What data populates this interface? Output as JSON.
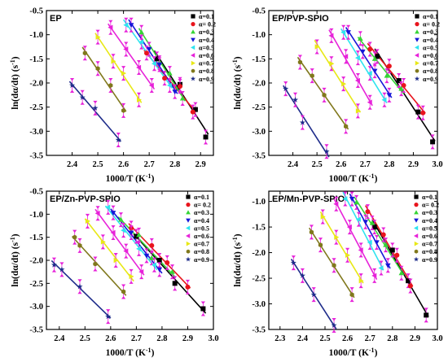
{
  "chart_data": [
    {
      "type": "scatter",
      "title": "EP",
      "xlabel": "1000/T (K⁻¹)",
      "ylabel": "ln(dα/dt) (s⁻¹)",
      "xlim": [
        2.3,
        2.95
      ],
      "ylim": [
        -3.5,
        -0.5
      ],
      "xticks": [
        "2.4",
        "2.5",
        "2.6",
        "2.7",
        "2.8",
        "2.9"
      ],
      "yticks": [
        "-0.5",
        "-1.0",
        "-1.5",
        "-2.0",
        "-2.5",
        "-3.0",
        "-3.5"
      ],
      "series": [
        {
          "name": "α=0.1",
          "x": [
            2.73,
            2.82,
            2.88,
            2.92
          ],
          "y": [
            -1.5,
            -2.03,
            -2.55,
            -3.12
          ]
        },
        {
          "name": "α= 0.2",
          "x": [
            2.69,
            2.76,
            2.82,
            2.87
          ],
          "y": [
            -1.38,
            -1.9,
            -2.07,
            -2.6
          ]
        },
        {
          "name": "α=0.3",
          "x": [
            2.67,
            2.74,
            2.78,
            2.83
          ],
          "y": [
            -0.95,
            -1.58,
            -1.8,
            -2.32
          ]
        },
        {
          "name": "α=0.4",
          "x": [
            2.63,
            2.7,
            2.74,
            2.8
          ],
          "y": [
            -0.8,
            -1.3,
            -1.62,
            -2.18
          ]
        },
        {
          "name": "α=0.5",
          "x": [
            2.61,
            2.67,
            2.72,
            2.78
          ],
          "y": [
            -0.8,
            -1.15,
            -1.6,
            -2.05
          ]
        },
        {
          "name": "α=0.6",
          "x": [
            2.55,
            2.61,
            2.66,
            2.71
          ],
          "y": [
            -0.85,
            -1.3,
            -1.68,
            -2.05
          ]
        },
        {
          "name": "α=0.7",
          "x": [
            2.5,
            2.56,
            2.6,
            2.66
          ],
          "y": [
            -1.05,
            -1.55,
            -1.8,
            -2.35
          ]
        },
        {
          "name": "α=0.8",
          "x": [
            2.45,
            2.5,
            2.55,
            2.6
          ],
          "y": [
            -1.38,
            -1.7,
            -2.05,
            -2.57
          ]
        },
        {
          "name": "α=0.9",
          "x": [
            2.4,
            2.44,
            2.49,
            2.58
          ],
          "y": [
            -2.05,
            -2.3,
            -2.52,
            -3.18
          ]
        }
      ]
    },
    {
      "type": "scatter",
      "title": "EP/PVP-SPIO",
      "xlabel": "1000/T (K⁻¹)",
      "ylabel": "ln(dα/dt) (s⁻¹)",
      "xlim": [
        2.3,
        3.0
      ],
      "ylim": [
        -3.5,
        -0.5
      ],
      "xticks": [
        "2.4",
        "2.5",
        "2.6",
        "2.7",
        "2.8",
        "2.9",
        "3.0"
      ],
      "yticks": [
        "-0.5",
        "-1.0",
        "-1.5",
        "-2.0",
        "-2.5",
        "-3.0",
        "-3.5"
      ],
      "series": [
        {
          "name": "α=0.1",
          "x": [
            2.75,
            2.84,
            2.92,
            2.98
          ],
          "y": [
            -1.45,
            -1.95,
            -2.6,
            -3.22
          ]
        },
        {
          "name": "α= 0.2",
          "x": [
            2.72,
            2.8,
            2.86,
            2.94
          ],
          "y": [
            -1.3,
            -1.65,
            -2.05,
            -2.62
          ]
        },
        {
          "name": "α=0.3",
          "x": [
            2.68,
            2.74,
            2.79,
            2.85
          ],
          "y": [
            -1.08,
            -1.5,
            -1.85,
            -2.12
          ]
        },
        {
          "name": "α=0.4",
          "x": [
            2.63,
            2.69,
            2.74,
            2.8
          ],
          "y": [
            -0.95,
            -1.35,
            -1.75,
            -2.25
          ]
        },
        {
          "name": "α=0.5",
          "x": [
            2.61,
            2.67,
            2.72,
            2.78
          ],
          "y": [
            -0.95,
            -1.48,
            -1.8,
            -2.35
          ]
        },
        {
          "name": "α=0.6",
          "x": [
            2.56,
            2.62,
            2.67,
            2.72
          ],
          "y": [
            -1.02,
            -1.45,
            -1.95,
            -2.4
          ]
        },
        {
          "name": "α=0.7",
          "x": [
            2.5,
            2.56,
            2.61,
            2.67
          ],
          "y": [
            -1.25,
            -1.6,
            -2.02,
            -2.58
          ]
        },
        {
          "name": "α=0.8",
          "x": [
            2.43,
            2.48,
            2.53,
            2.62
          ],
          "y": [
            -1.57,
            -1.85,
            -2.25,
            -2.9
          ]
        },
        {
          "name": "α=0.9",
          "x": [
            2.37,
            2.41,
            2.44,
            2.54
          ],
          "y": [
            -2.12,
            -2.35,
            -2.82,
            -3.42
          ]
        }
      ]
    },
    {
      "type": "scatter",
      "title": "EP/Zn-PVP-SPIO",
      "xlabel": "1000/T (K⁻¹)",
      "ylabel": "ln(dα/dt) (s⁻¹)",
      "xlim": [
        2.35,
        3.0
      ],
      "ylim": [
        -3.5,
        -0.5
      ],
      "xticks": [
        "2.4",
        "2.5",
        "2.6",
        "2.7",
        "2.8",
        "2.9",
        "3.0"
      ],
      "yticks": [
        "-0.5",
        "-1.0",
        "-1.5",
        "-2.0",
        "-2.5",
        "-3.0",
        "-3.5"
      ],
      "series": [
        {
          "name": "α=0.1",
          "x": [
            2.7,
            2.79,
            2.85,
            2.96
          ],
          "y": [
            -1.48,
            -2.0,
            -2.5,
            -3.05
          ]
        },
        {
          "name": "α= 0.2",
          "x": [
            2.68,
            2.76,
            2.82,
            2.9
          ],
          "y": [
            -1.3,
            -1.68,
            -2.05,
            -2.58
          ]
        },
        {
          "name": "α=0.3",
          "x": [
            2.64,
            2.71,
            2.76,
            2.84
          ],
          "y": [
            -1.12,
            -1.45,
            -1.95,
            -2.25
          ]
        },
        {
          "name": "α=0.4",
          "x": [
            2.61,
            2.68,
            2.74,
            2.79
          ],
          "y": [
            -0.97,
            -1.4,
            -1.9,
            -2.2
          ]
        },
        {
          "name": "α=0.5",
          "x": [
            2.59,
            2.65,
            2.71,
            2.77
          ],
          "y": [
            -0.85,
            -1.35,
            -1.75,
            -2.1
          ]
        },
        {
          "name": "α=0.6",
          "x": [
            2.55,
            2.61,
            2.66,
            2.72
          ],
          "y": [
            -0.98,
            -1.4,
            -1.8,
            -2.25
          ]
        },
        {
          "name": "α=0.7",
          "x": [
            2.51,
            2.57,
            2.62,
            2.68
          ],
          "y": [
            -1.15,
            -1.6,
            -2.0,
            -2.35
          ]
        },
        {
          "name": "α=0.8",
          "x": [
            2.46,
            2.48,
            2.54,
            2.65
          ],
          "y": [
            -1.5,
            -1.68,
            -2.08,
            -2.68
          ]
        },
        {
          "name": "α=0.9",
          "x": [
            2.38,
            2.41,
            2.48,
            2.59
          ],
          "y": [
            -2.1,
            -2.2,
            -2.57,
            -3.22
          ]
        }
      ]
    },
    {
      "type": "scatter",
      "title": "EP/Mn-PVP-SPIO",
      "xlabel": "1000/T (K⁻¹)",
      "ylabel": "ln(dα/dt) (s⁻¹)",
      "xlim": [
        2.25,
        3.0
      ],
      "ylim": [
        -3.5,
        -0.8
      ],
      "xticks": [
        "2.3",
        "2.4",
        "2.5",
        "2.6",
        "2.7",
        "2.8",
        "2.9",
        "3.0"
      ],
      "yticks": [
        "-1.0",
        "-1.5",
        "-2.0",
        "-2.5",
        "-3.0",
        "-3.5"
      ],
      "series": [
        {
          "name": "α=0.1",
          "x": [
            2.72,
            2.8,
            2.87,
            2.95
          ],
          "y": [
            -1.5,
            -1.95,
            -2.55,
            -3.22
          ]
        },
        {
          "name": "α= 0.2",
          "x": [
            2.69,
            2.76,
            2.82,
            2.88
          ],
          "y": [
            -1.2,
            -1.65,
            -2.05,
            -2.65
          ]
        },
        {
          "name": "α=0.3",
          "x": [
            2.64,
            2.71,
            2.77,
            2.84
          ],
          "y": [
            -1.02,
            -1.42,
            -1.85,
            -2.4
          ]
        },
        {
          "name": "α=0.4",
          "x": [
            2.62,
            2.68,
            2.73,
            2.78
          ],
          "y": [
            -0.95,
            -1.4,
            -1.8,
            -2.25
          ]
        },
        {
          "name": "α=0.5",
          "x": [
            2.59,
            2.65,
            2.7,
            2.75
          ],
          "y": [
            -0.95,
            -1.35,
            -1.8,
            -2.3
          ]
        },
        {
          "name": "α=0.6",
          "x": [
            2.55,
            2.61,
            2.66,
            2.72
          ],
          "y": [
            -1.05,
            -1.5,
            -1.95,
            -2.45
          ]
        },
        {
          "name": "α=0.7",
          "x": [
            2.49,
            2.55,
            2.6,
            2.66
          ],
          "y": [
            -1.3,
            -1.7,
            -2.05,
            -2.55
          ]
        },
        {
          "name": "α=0.8",
          "x": [
            2.44,
            2.48,
            2.54,
            2.62
          ],
          "y": [
            -1.6,
            -1.85,
            -2.25,
            -2.82
          ]
        },
        {
          "name": "α=0.9",
          "x": [
            2.36,
            2.4,
            2.45,
            2.54
          ],
          "y": [
            -2.2,
            -2.45,
            -2.82,
            -3.42
          ]
        }
      ]
    }
  ],
  "panels": [
    {
      "title": "EP",
      "xlabel": "1000/T (K",
      "xlabel_sup": "-1",
      "ylabel": "ln(dα/dt) (s",
      "ylabel_sup": "-1"
    },
    {
      "title": "EP/PVP-SPIO",
      "xlabel": "1000/T (K",
      "xlabel_sup": "-1",
      "ylabel": "ln(dα/dt) (s",
      "ylabel_sup": "-1"
    },
    {
      "title": "EP/Zn-PVP-SPIO",
      "xlabel": "1000/T (K",
      "xlabel_sup": "-1",
      "ylabel": "ln(dα/dt) (s",
      "ylabel_sup": "-1"
    },
    {
      "title": "EP/Mn-PVP-SPIO",
      "xlabel": "1000/T (K",
      "xlabel_sup": "-1",
      "ylabel": "ln(dα/dt) (s",
      "ylabel_sup": "-1"
    }
  ],
  "series_styles": [
    {
      "marker": "square",
      "color": "#000000",
      "icon": "black-square-marker"
    },
    {
      "marker": "circle",
      "color": "#e8141c",
      "icon": "red-circle-marker"
    },
    {
      "marker": "triangle-up",
      "color": "#35d535",
      "icon": "green-triangle-marker"
    },
    {
      "marker": "triangle-down",
      "color": "#1616d8",
      "icon": "blue-triangle-marker"
    },
    {
      "marker": "triangle-left",
      "color": "#2fe4ef",
      "icon": "cyan-triangle-marker"
    },
    {
      "marker": "triangle-left",
      "color": "#e722d9",
      "icon": "magenta-triangle-marker"
    },
    {
      "marker": "triangle-right",
      "color": "#e8e816",
      "icon": "yellow-triangle-marker"
    },
    {
      "marker": "hexagon",
      "color": "#80781c",
      "icon": "olive-hexagon-marker"
    },
    {
      "marker": "star",
      "color": "#1e2c8a",
      "icon": "navy-star-marker"
    }
  ],
  "error_bar_color": "#e722d9"
}
